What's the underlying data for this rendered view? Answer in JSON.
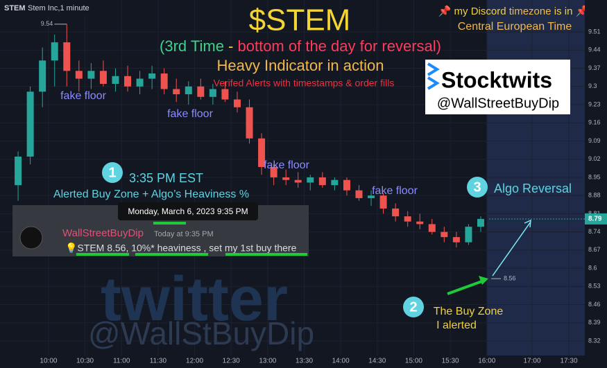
{
  "header": {
    "symbol": "STEM",
    "name": "Stem Inc,1 minute"
  },
  "chart_data": {
    "type": "candlestick",
    "x": [
      570,
      580,
      590,
      600,
      610,
      620,
      630,
      640,
      650,
      660,
      670,
      680,
      690,
      700,
      710,
      720,
      730,
      740,
      750,
      760,
      770,
      780,
      790,
      800,
      810,
      820,
      830,
      840,
      850,
      860,
      870,
      880,
      890,
      900,
      910,
      920,
      930,
      940,
      950
    ],
    "open": [
      8.92,
      9.03,
      9.28,
      9.4,
      9.47,
      9.36,
      9.33,
      9.36,
      9.31,
      9.34,
      9.3,
      9.33,
      9.35,
      9.29,
      9.27,
      9.3,
      9.26,
      9.29,
      9.25,
      9.22,
      9.1,
      8.99,
      8.95,
      8.94,
      8.93,
      8.95,
      8.92,
      8.94,
      8.9,
      8.87,
      8.88,
      8.83,
      8.8,
      8.78,
      8.77,
      8.74,
      8.72,
      8.7,
      8.76
    ],
    "high": [
      9.05,
      9.3,
      9.45,
      9.5,
      9.54,
      9.4,
      9.39,
      9.4,
      9.37,
      9.38,
      9.36,
      9.38,
      9.37,
      9.33,
      9.32,
      9.33,
      9.31,
      9.32,
      9.28,
      9.25,
      9.12,
      9.0,
      8.98,
      8.97,
      8.96,
      8.97,
      8.95,
      8.95,
      8.92,
      8.9,
      8.89,
      8.85,
      8.82,
      8.81,
      8.79,
      8.76,
      8.74,
      8.77,
      8.8
    ],
    "low": [
      8.86,
      9.0,
      9.22,
      9.3,
      9.3,
      9.28,
      9.29,
      9.3,
      9.28,
      9.28,
      9.27,
      9.29,
      9.27,
      9.24,
      9.23,
      9.25,
      9.23,
      9.24,
      9.2,
      9.08,
      8.96,
      8.92,
      8.92,
      8.91,
      8.9,
      8.91,
      8.9,
      8.88,
      8.86,
      8.84,
      8.81,
      8.78,
      8.76,
      8.75,
      8.73,
      8.7,
      8.68,
      8.69,
      8.74
    ],
    "close": [
      9.03,
      9.28,
      9.4,
      9.47,
      9.36,
      9.33,
      9.36,
      9.31,
      9.34,
      9.3,
      9.33,
      9.35,
      9.29,
      9.27,
      9.3,
      9.26,
      9.29,
      9.25,
      9.22,
      9.1,
      8.99,
      8.95,
      8.94,
      8.93,
      8.95,
      8.92,
      8.94,
      8.9,
      8.87,
      8.88,
      8.83,
      8.8,
      8.78,
      8.77,
      8.74,
      8.72,
      8.7,
      8.76,
      8.79
    ],
    "up_color": "#26a69a",
    "down_color": "#ef5350",
    "ylim": [
      8.264,
      9.633
    ],
    "yticks": [
      9.51,
      9.44,
      9.37,
      9.3,
      9.23,
      9.16,
      9.09,
      9.02,
      8.95,
      8.88,
      8.81,
      8.74,
      8.67,
      8.6,
      8.53,
      8.46,
      8.39,
      8.32
    ],
    "xticks": [
      {
        "value": 600,
        "label": "10:00"
      },
      {
        "value": 630,
        "label": "10:30"
      },
      {
        "value": 660,
        "label": "11:00"
      },
      {
        "value": 690,
        "label": "11:30"
      },
      {
        "value": 720,
        "label": "12:00"
      },
      {
        "value": 750,
        "label": "12:30"
      },
      {
        "value": 780,
        "label": "13:00"
      },
      {
        "value": 810,
        "label": "13:30"
      },
      {
        "value": 840,
        "label": "14:00"
      },
      {
        "value": 870,
        "label": "14:30"
      },
      {
        "value": 900,
        "label": "15:00"
      },
      {
        "value": 930,
        "label": "15:30"
      },
      {
        "value": 960,
        "label": "16:00"
      },
      {
        "value": 1020,
        "label": "17:00"
      },
      {
        "value": 1050,
        "label": "17:30"
      }
    ],
    "high_marker": 9.54,
    "last_price": 8.79,
    "buy_marker": 8.56
  },
  "annotations": {
    "title": "$STEM",
    "subtitle": [
      "(3rd Time",
      " - ",
      "bottom of the day for reversal)"
    ],
    "line2": "Heavy Indicator in action",
    "line3": "Verifed Alerts with timestamps & order fills",
    "timezone": [
      "📌",
      " my Discord ",
      "timezone",
      " is in ",
      "📌"
    ],
    "timezone2": "Central European Time",
    "brand": "Stocktwits",
    "handle": "@WallStreetBuyDip",
    "fake_floor": [
      "fake floor",
      "fake floor",
      "fake floor",
      "fake floor"
    ],
    "step1": {
      "num": "1",
      "time": "3:35 PM EST",
      "text": "Alerted Buy Zone + Algo’s Heaviness %"
    },
    "discord": {
      "date": "Monday, March 6, 2023 9:35 PM",
      "user": "WallStreetBuyDip",
      "when": "Today at 9:35 PM",
      "message": "💡STEM 8.56, 10%* heaviness , set my 1st buy there"
    },
    "step3": {
      "num": "3",
      "text": "Algo Reversal"
    },
    "step2": {
      "num": "2",
      "text1": "The Buy Zone",
      "text2": "I alerted"
    },
    "watermark": "twitter",
    "watermark_handle": "@WallStBuyDip"
  }
}
